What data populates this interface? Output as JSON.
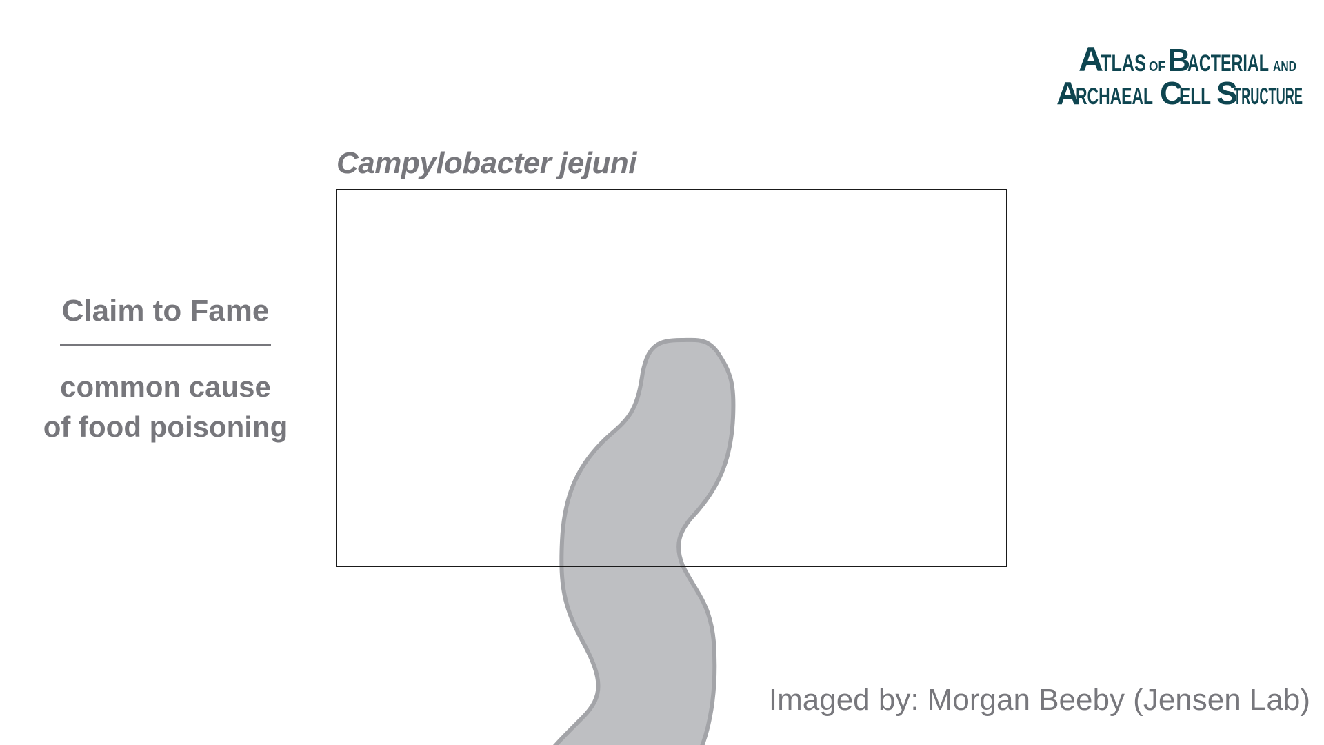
{
  "logo": {
    "line1_big_a": "A",
    "line1_rest": "TLAS",
    "line1_of": "OF",
    "line1_b": "B",
    "line1_acterial": "ACTERIAL",
    "line1_and": "AND",
    "line2_a": "A",
    "line2_rchaeal": "RCHAEAL",
    "line2_c": "C",
    "line2_ell": "ELL",
    "line2_s": "S",
    "line2_tructure": "TRUCTURE",
    "color": "#0e4550"
  },
  "specimen": {
    "title": "Campylobacter jejuni"
  },
  "claim": {
    "heading": "Claim to Fame",
    "line1": "common cause",
    "line2": "of food poisoning"
  },
  "credit": {
    "text": "Imaged by: Morgan Beeby (Jensen Lab)"
  },
  "colors": {
    "text_gray": "#77777c",
    "cell_fill": "#bebfc2",
    "cell_stroke": "#a3a4a8",
    "frame": "#1a1a1a"
  }
}
